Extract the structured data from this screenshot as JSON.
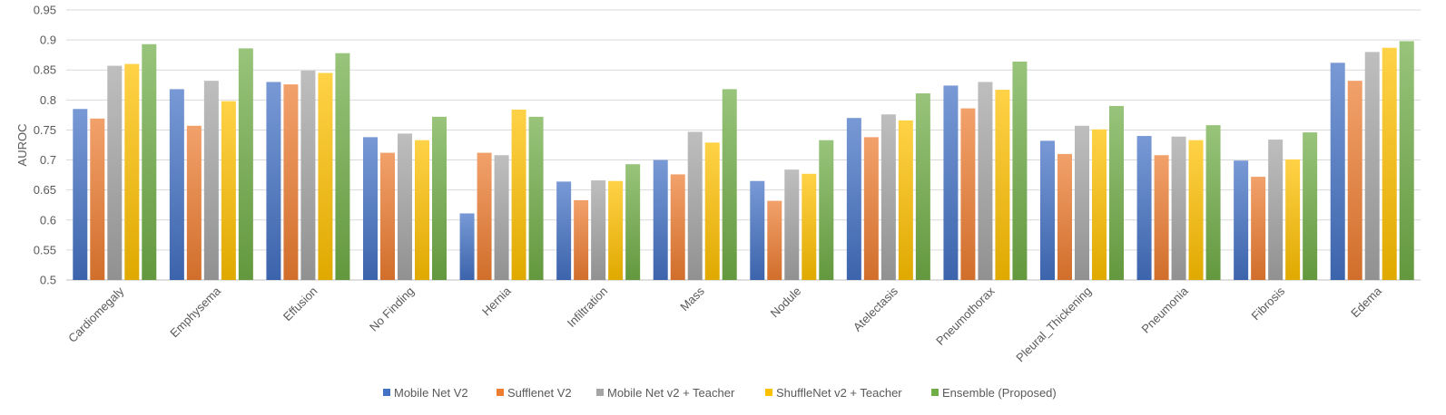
{
  "chart_data": {
    "type": "bar",
    "title": "",
    "xlabel": "",
    "ylabel": "AUROC",
    "ylim": [
      0.5,
      0.95
    ],
    "ytick_step": 0.05,
    "yticks": [
      "0.5",
      "0.55",
      "0.6",
      "0.65",
      "0.7",
      "0.75",
      "0.8",
      "0.85",
      "0.9",
      "0.95"
    ],
    "grid": true,
    "legend_position": "bottom",
    "categories": [
      "Cardiomegaly",
      "Emphysema",
      "Effusion",
      "No Finding",
      "Hernia",
      "Infiltration",
      "Mass",
      "Nodule",
      "Atelectasis",
      "Pneumothorax",
      "Pleural_Thickening",
      "Pneumonia",
      "Fibrosis",
      "Edema"
    ],
    "series": [
      {
        "name": "Mobile Net V2",
        "color": "#4472C4",
        "values": [
          0.785,
          0.818,
          0.83,
          0.738,
          0.611,
          0.664,
          0.7,
          0.665,
          0.77,
          0.824,
          0.732,
          0.74,
          0.699,
          0.862
        ]
      },
      {
        "name": "Sufflenet V2",
        "color": "#ED7D31",
        "values": [
          0.769,
          0.757,
          0.826,
          0.712,
          0.712,
          0.633,
          0.676,
          0.632,
          0.738,
          0.786,
          0.71,
          0.708,
          0.672,
          0.832
        ]
      },
      {
        "name": "Mobile Net v2 + Teacher",
        "color": "#A5A5A5",
        "values": [
          0.857,
          0.832,
          0.849,
          0.744,
          0.708,
          0.666,
          0.747,
          0.684,
          0.776,
          0.83,
          0.757,
          0.739,
          0.734,
          0.88
        ]
      },
      {
        "name": "ShuffleNet v2 + Teacher",
        "color": "#FFC000",
        "values": [
          0.86,
          0.798,
          0.845,
          0.733,
          0.784,
          0.665,
          0.729,
          0.677,
          0.766,
          0.817,
          0.751,
          0.733,
          0.701,
          0.887
        ]
      },
      {
        "name": "Ensemble (Proposed)",
        "color": "#70AD47",
        "values": [
          0.893,
          0.886,
          0.878,
          0.772,
          0.772,
          0.693,
          0.818,
          0.733,
          0.811,
          0.864,
          0.79,
          0.758,
          0.746,
          0.898
        ]
      }
    ]
  }
}
